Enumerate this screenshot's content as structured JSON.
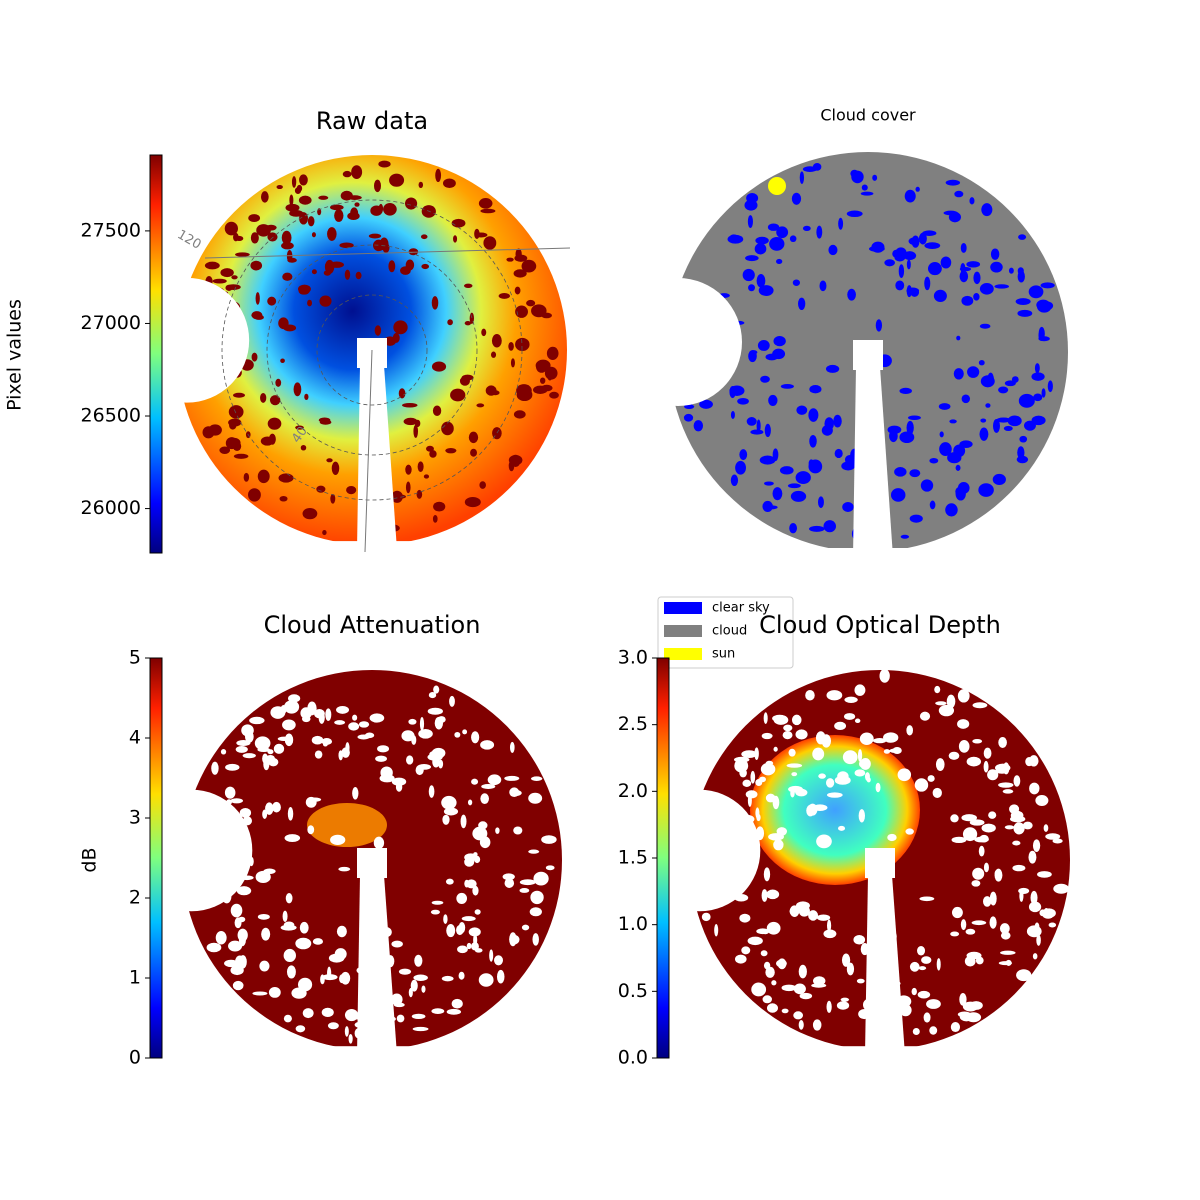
{
  "chart_data": [
    {
      "type": "image",
      "title": "Raw data",
      "colorbar_label": "Pixel values",
      "colormap": "jet",
      "clim": [
        25760,
        27910
      ],
      "cticks": [
        26000,
        26500,
        27000,
        27500
      ],
      "annotations": [
        "120",
        "40"
      ]
    },
    {
      "type": "image",
      "title": "Cloud cover",
      "legend": [
        {
          "name": "clear sky",
          "color": "#0000ff"
        },
        {
          "name": "cloud",
          "color": "#808080"
        },
        {
          "name": "sun",
          "color": "#ffff00"
        }
      ]
    },
    {
      "type": "image",
      "title": "Cloud Attenuation",
      "colorbar_label": "dB",
      "colormap": "jet",
      "clim": [
        0,
        5
      ],
      "cticks": [
        0,
        1,
        2,
        3,
        4,
        5
      ]
    },
    {
      "type": "image",
      "title": "Cloud Optical Depth",
      "colormap": "jet",
      "clim": [
        0,
        3
      ],
      "cticks": [
        {
          "value": 0,
          "label": "0.0"
        },
        {
          "value": 0.5,
          "label": "0.5"
        },
        {
          "value": 1,
          "label": "1.0"
        },
        {
          "value": 1.5,
          "label": "1.5"
        },
        {
          "value": 2,
          "label": "2.0"
        },
        {
          "value": 2.5,
          "label": "2.5"
        },
        {
          "value": 3,
          "label": "3.0"
        }
      ]
    }
  ]
}
